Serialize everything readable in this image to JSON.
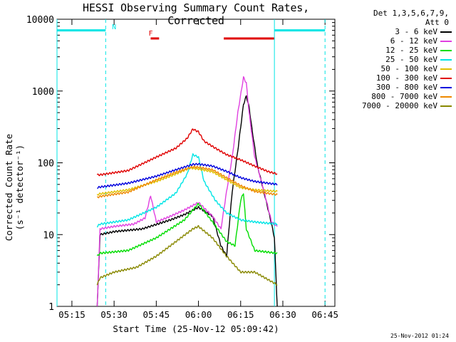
{
  "chart_data": {
    "type": "line",
    "title": "HESSI Observing Summary Count Rates, Corrected",
    "xlabel": "Start Time (25-Nov-12 05:09:42)",
    "ylabel": "Corrected Count Rate (s⁻¹ detector⁻¹)",
    "xlim": [
      "05:09:42",
      "06:48:30"
    ],
    "ylim": [
      1,
      10000
    ],
    "yscale": "log",
    "x_ticks": [
      "05:15",
      "05:30",
      "05:45",
      "06:00",
      "06:15",
      "06:30",
      "06:45"
    ],
    "y_ticks": [
      {
        "value": 1,
        "label": "1"
      },
      {
        "value": 10,
        "label": "10"
      },
      {
        "value": 100,
        "label": "100"
      },
      {
        "value": 1000,
        "label": "1000"
      },
      {
        "value": 10000,
        "label": "10000"
      }
    ],
    "legend_header": [
      "Det 1,3,5,6,7,9,",
      "Att 0"
    ],
    "series": [
      {
        "name": "3 - 6 keV",
        "color": "#000000",
        "points": [
          [
            "05:24",
            1
          ],
          [
            "05:25",
            10
          ],
          [
            "05:30",
            11
          ],
          [
            "05:40",
            12
          ],
          [
            "05:50",
            16
          ],
          [
            "05:55",
            19
          ],
          [
            "06:00",
            24
          ],
          [
            "06:05",
            18
          ],
          [
            "06:08",
            7
          ],
          [
            "06:10",
            5
          ],
          [
            "06:12",
            40
          ],
          [
            "06:14",
            150
          ],
          [
            "06:16",
            650
          ],
          [
            "06:17",
            850
          ],
          [
            "06:18",
            600
          ],
          [
            "06:19",
            300
          ],
          [
            "06:21",
            90
          ],
          [
            "06:24",
            30
          ],
          [
            "06:26",
            14
          ],
          [
            "06:27",
            9
          ],
          [
            "06:28",
            1
          ]
        ]
      },
      {
        "name": "6 - 12 keV",
        "color": "#e040e0",
        "points": [
          [
            "05:24",
            1
          ],
          [
            "05:25",
            12
          ],
          [
            "05:30",
            13
          ],
          [
            "05:37",
            14
          ],
          [
            "05:41",
            17
          ],
          [
            "05:43",
            35
          ],
          [
            "05:45",
            15
          ],
          [
            "05:50",
            18
          ],
          [
            "05:55",
            22
          ],
          [
            "06:00",
            28
          ],
          [
            "06:05",
            18
          ],
          [
            "06:08",
            12
          ],
          [
            "06:10",
            40
          ],
          [
            "06:12",
            120
          ],
          [
            "06:14",
            500
          ],
          [
            "06:16",
            1550
          ],
          [
            "06:17",
            1300
          ],
          [
            "06:18",
            500
          ],
          [
            "06:20",
            120
          ],
          [
            "06:23",
            45
          ],
          [
            "06:26",
            15
          ],
          [
            "06:28",
            13
          ]
        ]
      },
      {
        "name": "12 - 25 keV",
        "color": "#00dd00",
        "points": [
          [
            "05:24",
            5
          ],
          [
            "05:25",
            5.5
          ],
          [
            "05:35",
            6
          ],
          [
            "05:45",
            9
          ],
          [
            "05:55",
            16
          ],
          [
            "06:00",
            27
          ],
          [
            "06:05",
            15
          ],
          [
            "06:10",
            8
          ],
          [
            "06:13",
            7
          ],
          [
            "06:15",
            30
          ],
          [
            "06:16",
            38
          ],
          [
            "06:17",
            12
          ],
          [
            "06:20",
            6
          ],
          [
            "06:28",
            5.5
          ]
        ]
      },
      {
        "name": "25 - 50 keV",
        "color": "#00e5e5",
        "points": [
          [
            "05:24",
            13
          ],
          [
            "05:25",
            14
          ],
          [
            "05:35",
            16
          ],
          [
            "05:45",
            24
          ],
          [
            "05:52",
            38
          ],
          [
            "05:56",
            70
          ],
          [
            "05:58",
            130
          ],
          [
            "06:00",
            120
          ],
          [
            "06:02",
            55
          ],
          [
            "06:06",
            30
          ],
          [
            "06:10",
            20
          ],
          [
            "06:15",
            16
          ],
          [
            "06:20",
            15
          ],
          [
            "06:28",
            14
          ]
        ]
      },
      {
        "name": "50 - 100 keV",
        "color": "#e0c000",
        "points": [
          [
            "05:24",
            36
          ],
          [
            "05:25",
            37
          ],
          [
            "05:35",
            42
          ],
          [
            "05:45",
            55
          ],
          [
            "05:52",
            70
          ],
          [
            "05:57",
            85
          ],
          [
            "06:00",
            82
          ],
          [
            "06:05",
            75
          ],
          [
            "06:10",
            58
          ],
          [
            "06:15",
            45
          ],
          [
            "06:20",
            42
          ],
          [
            "06:28",
            40
          ]
        ]
      },
      {
        "name": "100 - 300 keV",
        "color": "#e00000",
        "points": [
          [
            "05:24",
            68
          ],
          [
            "05:25",
            68
          ],
          [
            "05:35",
            78
          ],
          [
            "05:45",
            120
          ],
          [
            "05:52",
            160
          ],
          [
            "05:56",
            220
          ],
          [
            "05:58",
            295
          ],
          [
            "06:00",
            270
          ],
          [
            "06:02",
            200
          ],
          [
            "06:06",
            160
          ],
          [
            "06:10",
            130
          ],
          [
            "06:15",
            110
          ],
          [
            "06:20",
            90
          ],
          [
            "06:25",
            75
          ],
          [
            "06:28",
            70
          ]
        ]
      },
      {
        "name": "300 - 800 keV",
        "color": "#0000dd",
        "points": [
          [
            "05:24",
            45
          ],
          [
            "05:25",
            46
          ],
          [
            "05:35",
            52
          ],
          [
            "05:45",
            65
          ],
          [
            "05:52",
            80
          ],
          [
            "05:58",
            95
          ],
          [
            "06:00",
            96
          ],
          [
            "06:05",
            90
          ],
          [
            "06:10",
            76
          ],
          [
            "06:15",
            62
          ],
          [
            "06:20",
            55
          ],
          [
            "06:28",
            50
          ]
        ]
      },
      {
        "name": "800 - 7000 keV",
        "color": "#ee8800",
        "points": [
          [
            "05:24",
            33
          ],
          [
            "05:25",
            34
          ],
          [
            "05:35",
            39
          ],
          [
            "05:45",
            58
          ],
          [
            "05:52",
            74
          ],
          [
            "05:58",
            88
          ],
          [
            "06:00",
            87
          ],
          [
            "06:05",
            80
          ],
          [
            "06:10",
            62
          ],
          [
            "06:15",
            48
          ],
          [
            "06:20",
            40
          ],
          [
            "06:28",
            36
          ]
        ]
      },
      {
        "name": "7000 - 20000 keV",
        "color": "#888800",
        "points": [
          [
            "05:24",
            2
          ],
          [
            "05:25",
            2.5
          ],
          [
            "05:30",
            3
          ],
          [
            "05:38",
            3.5
          ],
          [
            "05:45",
            5
          ],
          [
            "05:52",
            8
          ],
          [
            "05:58",
            12
          ],
          [
            "06:00",
            13
          ],
          [
            "06:05",
            9
          ],
          [
            "06:10",
            5
          ],
          [
            "06:15",
            3
          ],
          [
            "06:20",
            3
          ],
          [
            "06:28",
            2
          ]
        ]
      }
    ],
    "annotations": [
      {
        "text": "N",
        "x": "05:29",
        "color": "#00e5e5"
      },
      {
        "text": "F",
        "x": "05:42",
        "color": "#e00000"
      }
    ],
    "night_bars": [
      [
        "05:09:42",
        "05:27"
      ],
      [
        "06:27",
        "06:45"
      ]
    ],
    "flare_bars": [
      [
        "05:43",
        "05:46"
      ],
      [
        "06:09",
        "06:27"
      ]
    ],
    "vertical_lines": [
      {
        "x": "05:09:42",
        "style": "solid"
      },
      {
        "x": "05:27",
        "style": "dashed"
      },
      {
        "x": "06:27",
        "style": "solid"
      },
      {
        "x": "06:45",
        "style": "dashed"
      }
    ],
    "timestamp": "25-Nov-2012 01:24"
  }
}
